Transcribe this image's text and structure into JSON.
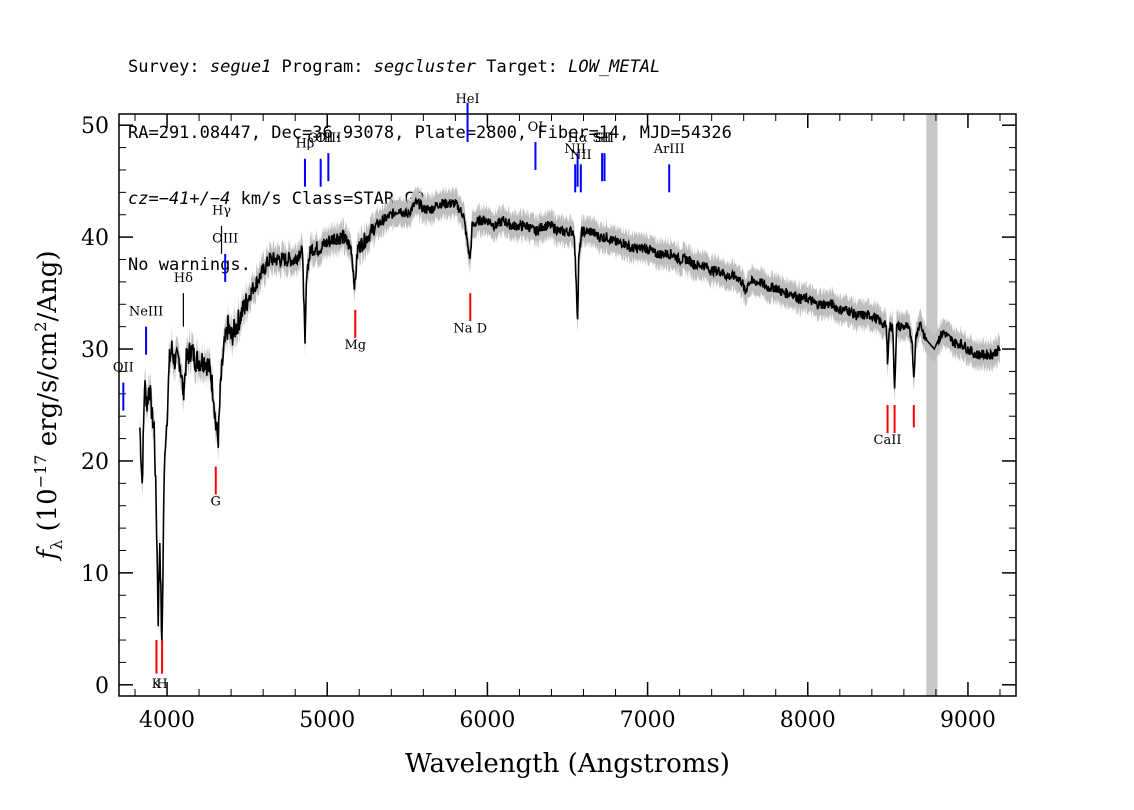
{
  "header": {
    "line1": {
      "survey_label": "Survey: ",
      "survey": "segue1",
      "program_label": " Program: ",
      "program": "segcluster",
      "target_label": " Target: ",
      "target": "LOW_METAL"
    },
    "line2": "RA=291.08447, Dec=36.93078, Plate=2800, Fiber=14, MJD=54326",
    "line3": {
      "cz_label": "cz",
      "cz_value": "=−41+/−4",
      "cz_rest": " km/s Class=STAR G2"
    },
    "line4": "No warnings."
  },
  "chart_data": {
    "type": "line",
    "xlabel": "Wavelength (Angstroms)",
    "ylabel_main": "f",
    "ylabel_sub": "λ",
    "ylabel_rest_a": " (10",
    "ylabel_exp": "−17",
    "ylabel_rest_b": " erg/s/cm",
    "ylabel_exp2": "2",
    "ylabel_rest_c": "/Ang)",
    "xlim": [
      3700,
      9300
    ],
    "ylim": [
      -1,
      51
    ],
    "xticks": [
      4000,
      5000,
      6000,
      7000,
      8000,
      9000
    ],
    "yticks": [
      0,
      10,
      20,
      30,
      40,
      50
    ],
    "masked_region": [
      8740,
      8810
    ],
    "colors": {
      "flux": "#000000",
      "error": "#bdbdbd",
      "emission": "#0000ff",
      "absorption": "#ff0000",
      "mask": "#c8c8c8",
      "neutral": "#000000"
    },
    "flux_points": [
      [
        3830,
        23
      ],
      [
        3845,
        18
      ],
      [
        3860,
        27
      ],
      [
        3875,
        25
      ],
      [
        3890,
        27
      ],
      [
        3905,
        24
      ],
      [
        3920,
        23
      ],
      [
        3935,
        14
      ],
      [
        3945,
        6
      ],
      [
        3955,
        13
      ],
      [
        3968,
        3
      ],
      [
        3980,
        17
      ],
      [
        3990,
        22
      ],
      [
        4000,
        24
      ],
      [
        4015,
        29
      ],
      [
        4030,
        30
      ],
      [
        4045,
        29
      ],
      [
        4060,
        29
      ],
      [
        4080,
        29
      ],
      [
        4101,
        26
      ],
      [
        4120,
        29
      ],
      [
        4150,
        30
      ],
      [
        4180,
        29
      ],
      [
        4210,
        29
      ],
      [
        4240,
        29
      ],
      [
        4270,
        28
      ],
      [
        4290,
        26
      ],
      [
        4305,
        23
      ],
      [
        4320,
        22
      ],
      [
        4335,
        27
      ],
      [
        4355,
        30
      ],
      [
        4380,
        32
      ],
      [
        4400,
        31
      ],
      [
        4430,
        32
      ],
      [
        4460,
        33
      ],
      [
        4490,
        34
      ],
      [
        4520,
        35
      ],
      [
        4560,
        36
      ],
      [
        4600,
        37
      ],
      [
        4640,
        38
      ],
      [
        4680,
        38
      ],
      [
        4720,
        38
      ],
      [
        4760,
        38
      ],
      [
        4800,
        38
      ],
      [
        4840,
        39
      ],
      [
        4850,
        37
      ],
      [
        4861,
        30
      ],
      [
        4872,
        37
      ],
      [
        4900,
        39
      ],
      [
        4950,
        39
      ],
      [
        5000,
        39.5
      ],
      [
        5050,
        40
      ],
      [
        5100,
        40
      ],
      [
        5150,
        39
      ],
      [
        5172,
        35.5
      ],
      [
        5190,
        39
      ],
      [
        5250,
        40
      ],
      [
        5300,
        41
      ],
      [
        5350,
        41.5
      ],
      [
        5400,
        42
      ],
      [
        5450,
        42.5
      ],
      [
        5500,
        42
      ],
      [
        5550,
        43
      ],
      [
        5575,
        43
      ],
      [
        5600,
        42.5
      ],
      [
        5650,
        42.5
      ],
      [
        5700,
        43
      ],
      [
        5750,
        43
      ],
      [
        5800,
        43
      ],
      [
        5850,
        42
      ],
      [
        5880,
        39
      ],
      [
        5892,
        38
      ],
      [
        5905,
        41
      ],
      [
        5950,
        41.5
      ],
      [
        6000,
        41.5
      ],
      [
        6050,
        41
      ],
      [
        6100,
        41.5
      ],
      [
        6150,
        41
      ],
      [
        6200,
        41
      ],
      [
        6250,
        41
      ],
      [
        6300,
        40.5
      ],
      [
        6350,
        41
      ],
      [
        6400,
        41
      ],
      [
        6450,
        40.5
      ],
      [
        6500,
        40.5
      ],
      [
        6540,
        40.5
      ],
      [
        6555,
        36
      ],
      [
        6563,
        32.5
      ],
      [
        6570,
        38
      ],
      [
        6590,
        40.5
      ],
      [
        6650,
        40.5
      ],
      [
        6700,
        40
      ],
      [
        6750,
        40
      ],
      [
        6800,
        39.5
      ],
      [
        6850,
        39.5
      ],
      [
        6900,
        39
      ],
      [
        6950,
        39
      ],
      [
        7000,
        39
      ],
      [
        7050,
        38.5
      ],
      [
        7100,
        38.5
      ],
      [
        7150,
        38.5
      ],
      [
        7200,
        38
      ],
      [
        7250,
        38
      ],
      [
        7300,
        37.5
      ],
      [
        7350,
        37.5
      ],
      [
        7400,
        37
      ],
      [
        7450,
        37
      ],
      [
        7500,
        36.5
      ],
      [
        7550,
        36.5
      ],
      [
        7590,
        36
      ],
      [
        7610,
        35
      ],
      [
        7630,
        36
      ],
      [
        7700,
        36
      ],
      [
        7750,
        35.5
      ],
      [
        7800,
        35.5
      ],
      [
        7850,
        35
      ],
      [
        7900,
        35
      ],
      [
        7950,
        34.5
      ],
      [
        8000,
        34.5
      ],
      [
        8050,
        34
      ],
      [
        8100,
        34
      ],
      [
        8150,
        34
      ],
      [
        8200,
        33.5
      ],
      [
        8250,
        33.5
      ],
      [
        8300,
        33
      ],
      [
        8350,
        33
      ],
      [
        8400,
        33
      ],
      [
        8450,
        32.5
      ],
      [
        8490,
        32
      ],
      [
        8498,
        29
      ],
      [
        8510,
        32
      ],
      [
        8530,
        32
      ],
      [
        8542,
        26.5
      ],
      [
        8555,
        32
      ],
      [
        8580,
        32
      ],
      [
        8620,
        32
      ],
      [
        8650,
        31
      ],
      [
        8662,
        27.5
      ],
      [
        8675,
        31
      ],
      [
        8700,
        32.5
      ],
      [
        8730,
        31
      ],
      [
        8760,
        30.5
      ],
      [
        8790,
        30
      ],
      [
        8820,
        31
      ],
      [
        8850,
        31.5
      ],
      [
        8880,
        31
      ],
      [
        8920,
        30.5
      ],
      [
        8960,
        30.5
      ],
      [
        9000,
        30
      ],
      [
        9050,
        29.5
      ],
      [
        9100,
        29.5
      ],
      [
        9150,
        29.5
      ],
      [
        9200,
        30
      ]
    ],
    "line_markers": [
      {
        "label": "OII",
        "wave": 3727,
        "type": "emission",
        "y_top": 27,
        "y_bot": 24.5,
        "label_y": 28
      },
      {
        "label": "NeIII",
        "wave": 3869,
        "type": "emission",
        "y_top": 32,
        "y_bot": 29.5,
        "label_y": 33
      },
      {
        "label": "Hδ",
        "wave": 4102,
        "type": "neutral",
        "y_top": 35,
        "y_bot": 32,
        "label_y": 36,
        "neutral": true
      },
      {
        "label": "Hγ",
        "wave": 4340,
        "type": "neutral",
        "y_top": 41,
        "y_bot": 38.5,
        "label_y": 42,
        "neutral": true
      },
      {
        "label": "OIII",
        "wave": 4363,
        "type": "emission",
        "y_top": 38.5,
        "y_bot": 36,
        "label_y": 39.5
      },
      {
        "label": "Hβ",
        "wave": 4861,
        "type": "emission",
        "y_top": 47,
        "y_bot": 44.5,
        "label_y": 48
      },
      {
        "label": "OIII",
        "wave": 4959,
        "type": "emission",
        "y_top": 47,
        "y_bot": 44.5,
        "label_y": 48.5
      },
      {
        "label": "OIII",
        "wave": 5007,
        "type": "emission",
        "y_top": 47.5,
        "y_bot": 45,
        "label_y": 48.5
      },
      {
        "label": "HeI",
        "wave": 5876,
        "type": "emission",
        "y_top": 52,
        "y_bot": 48.5,
        "label_y": 52
      },
      {
        "label": "OI",
        "wave": 6300,
        "type": "emission",
        "y_top": 48.5,
        "y_bot": 46,
        "label_y": 49.5
      },
      {
        "label": "NII",
        "wave": 6548,
        "type": "emission",
        "y_top": 46.5,
        "y_bot": 44,
        "label_y": 47.5
      },
      {
        "label": "Hα",
        "wave": 6563,
        "type": "emission",
        "y_top": 47.5,
        "y_bot": 44.5,
        "label_y": 48.5
      },
      {
        "label": "NII",
        "wave": 6583,
        "type": "emission",
        "y_top": 46.5,
        "y_bot": 44,
        "label_y": 47
      },
      {
        "label": "SII",
        "wave": 6716,
        "type": "emission",
        "y_top": 47.5,
        "y_bot": 45,
        "label_y": 48.5
      },
      {
        "label": "SII",
        "wave": 6731,
        "type": "emission",
        "y_top": 47.5,
        "y_bot": 45,
        "label_y": 48.5
      },
      {
        "label": "ArIII",
        "wave": 7135,
        "type": "emission",
        "y_top": 46.5,
        "y_bot": 44,
        "label_y": 47.5
      },
      {
        "label": "K",
        "wave": 3934,
        "type": "absorption",
        "y_top": 4,
        "y_bot": 1,
        "label_y": -0.3
      },
      {
        "label": "H",
        "wave": 3969,
        "type": "absorption",
        "y_top": 4,
        "y_bot": 1,
        "label_y": -0.3
      },
      {
        "label": "G",
        "wave": 4304,
        "type": "absorption",
        "y_top": 19.5,
        "y_bot": 17,
        "label_y": 16
      },
      {
        "label": "Mg",
        "wave": 5175,
        "type": "absorption",
        "y_top": 33.5,
        "y_bot": 31,
        "label_y": 30
      },
      {
        "label": "Na D",
        "wave": 5893,
        "type": "absorption",
        "y_top": 35,
        "y_bot": 32.5,
        "label_y": 31.5
      },
      {
        "label": "CaII",
        "wave": 8498,
        "type": "absorption",
        "y_top": 25,
        "y_bot": 22.5,
        "label_y": 21.5
      },
      {
        "label": "",
        "wave": 8542,
        "type": "absorption",
        "y_top": 25,
        "y_bot": 22.5
      },
      {
        "label": "",
        "wave": 8662,
        "type": "absorption",
        "y_top": 25,
        "y_bot": 23
      }
    ]
  }
}
